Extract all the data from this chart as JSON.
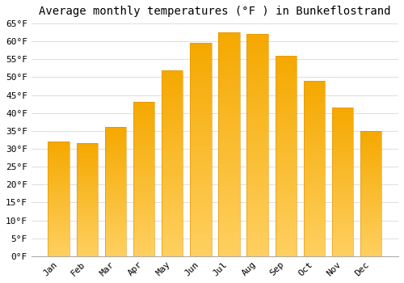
{
  "title": "Average monthly temperatures (°F ) in Bunkeflostrand",
  "months": [
    "Jan",
    "Feb",
    "Mar",
    "Apr",
    "May",
    "Jun",
    "Jul",
    "Aug",
    "Sep",
    "Oct",
    "Nov",
    "Dec"
  ],
  "values": [
    32,
    31.5,
    36,
    43,
    52,
    59.5,
    62.5,
    62,
    56,
    49,
    41.5,
    35
  ],
  "bar_color_top": "#F5A800",
  "bar_color_bottom": "#FFD060",
  "bar_edge_color": "#E09000",
  "background_color": "#FFFFFF",
  "grid_color": "#DDDDDD",
  "title_fontsize": 10,
  "tick_fontsize": 8,
  "ylim": [
    0,
    65
  ],
  "yticks": [
    0,
    5,
    10,
    15,
    20,
    25,
    30,
    35,
    40,
    45,
    50,
    55,
    60,
    65
  ]
}
